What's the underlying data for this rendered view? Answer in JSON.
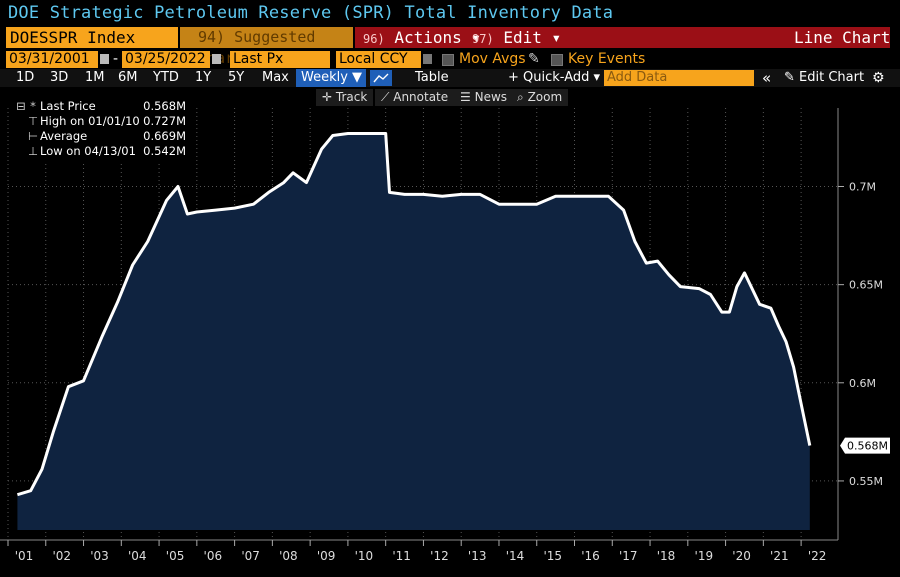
{
  "title": "DOE Strategic Petroleum Reserve (SPR) Total Inventory Data",
  "toolbar": {
    "ticker": "DOESSPR Index",
    "suggested_num": "94)",
    "suggested_label": "Suggested Charts",
    "actions_num": "96)",
    "actions_label": "Actions ▾",
    "edit_num": "97)",
    "edit_label": "Edit ▾",
    "chart_type": "Line Chart"
  },
  "settings": {
    "start_date": "03/31/2001",
    "end_date": "03/25/2022",
    "date_sep": "-",
    "field": "Last Px",
    "currency": "Local CCY",
    "mov_avgs": "Mov Avgs",
    "key_events": "Key Events"
  },
  "periods": [
    "1D",
    "3D",
    "1M",
    "6M",
    "YTD",
    "1Y",
    "5Y",
    "Max"
  ],
  "frequency": "Weekly ▼",
  "table_label": "Table",
  "quick_add": "+ Quick-Add ▾",
  "add_data_placeholder": "Add Data",
  "collapse_glyph": "«",
  "edit_chart": "Edit Chart",
  "tools": {
    "track": "Track",
    "annotate": "Annotate",
    "news": "News",
    "zoom": "Zoom"
  },
  "legend": {
    "last_label": "Last Price",
    "last_value": "0.568M",
    "high_label": "High on 01/01/10",
    "high_value": "0.727M",
    "avg_label": "Average",
    "avg_value": "0.669M",
    "low_label": "Low on 04/13/01",
    "low_value": "0.542M"
  },
  "colors": {
    "accent_orange": "#f7a41c",
    "title_blue": "#5ec8f0",
    "toolbar_red": "#9b0f16",
    "area_fill": "#0f2340",
    "line": "#ffffff"
  },
  "chart_data": {
    "type": "area",
    "series": [
      {
        "x": [
          2001.25,
          2001.6,
          2001.9,
          2002.2,
          2002.6,
          2003.0,
          2003.5,
          2003.9,
          2004.3,
          2004.7,
          2005.2,
          2005.5,
          2005.75,
          2006.0,
          2006.5,
          2007.0,
          2007.5,
          2007.9,
          2008.3,
          2008.55,
          2008.9,
          2009.3,
          2009.6,
          2010.0,
          2010.5,
          2011.0,
          2011.1,
          2011.5,
          2012.0,
          2012.5,
          2013.0,
          2013.5,
          2014.0,
          2014.5,
          2015.0,
          2015.5,
          2016.0,
          2016.5,
          2016.9,
          2017.3,
          2017.6,
          2017.9,
          2018.2,
          2018.5,
          2018.8,
          2019.3,
          2019.6,
          2019.9,
          2020.1,
          2020.3,
          2020.5,
          2020.9,
          2021.2,
          2021.4,
          2021.6,
          2021.8,
          2021.95,
          2022.1,
          2022.23
        ],
        "y": [
          0.543,
          0.545,
          0.556,
          0.575,
          0.598,
          0.601,
          0.624,
          0.641,
          0.66,
          0.672,
          0.693,
          0.7,
          0.686,
          0.687,
          0.688,
          0.689,
          0.691,
          0.697,
          0.702,
          0.707,
          0.702,
          0.719,
          0.726,
          0.727,
          0.727,
          0.727,
          0.697,
          0.696,
          0.696,
          0.695,
          0.696,
          0.696,
          0.691,
          0.691,
          0.691,
          0.695,
          0.695,
          0.695,
          0.695,
          0.688,
          0.672,
          0.661,
          0.662,
          0.655,
          0.649,
          0.648,
          0.645,
          0.636,
          0.636,
          0.649,
          0.656,
          0.64,
          0.638,
          0.629,
          0.621,
          0.608,
          0.594,
          0.58,
          0.568
        ]
      }
    ],
    "xlim": [
      2001.0,
      2022.5
    ],
    "ylim": [
      0.525,
      0.74
    ],
    "y_ticks": [
      0.55,
      0.6,
      0.65,
      0.7
    ],
    "y_tick_labels": [
      "0.55M",
      "0.6M",
      "0.65M",
      "0.7M"
    ],
    "x_ticks": [
      2001,
      2002,
      2003,
      2004,
      2005,
      2006,
      2007,
      2008,
      2009,
      2010,
      2011,
      2012,
      2013,
      2014,
      2015,
      2016,
      2017,
      2018,
      2019,
      2020,
      2021,
      2022
    ],
    "x_tick_labels": [
      "'01",
      "'02",
      "'03",
      "'04",
      "'05",
      "'06",
      "'07",
      "'08",
      "'09",
      "'10",
      "'11",
      "'12",
      "'13",
      "'14",
      "'15",
      "'16",
      "'17",
      "'18",
      "'19",
      "'20",
      "'21",
      "'22"
    ],
    "last_value_label": "0.568M",
    "last_value": 0.568,
    "grid": true,
    "legend_position": "top-left"
  }
}
